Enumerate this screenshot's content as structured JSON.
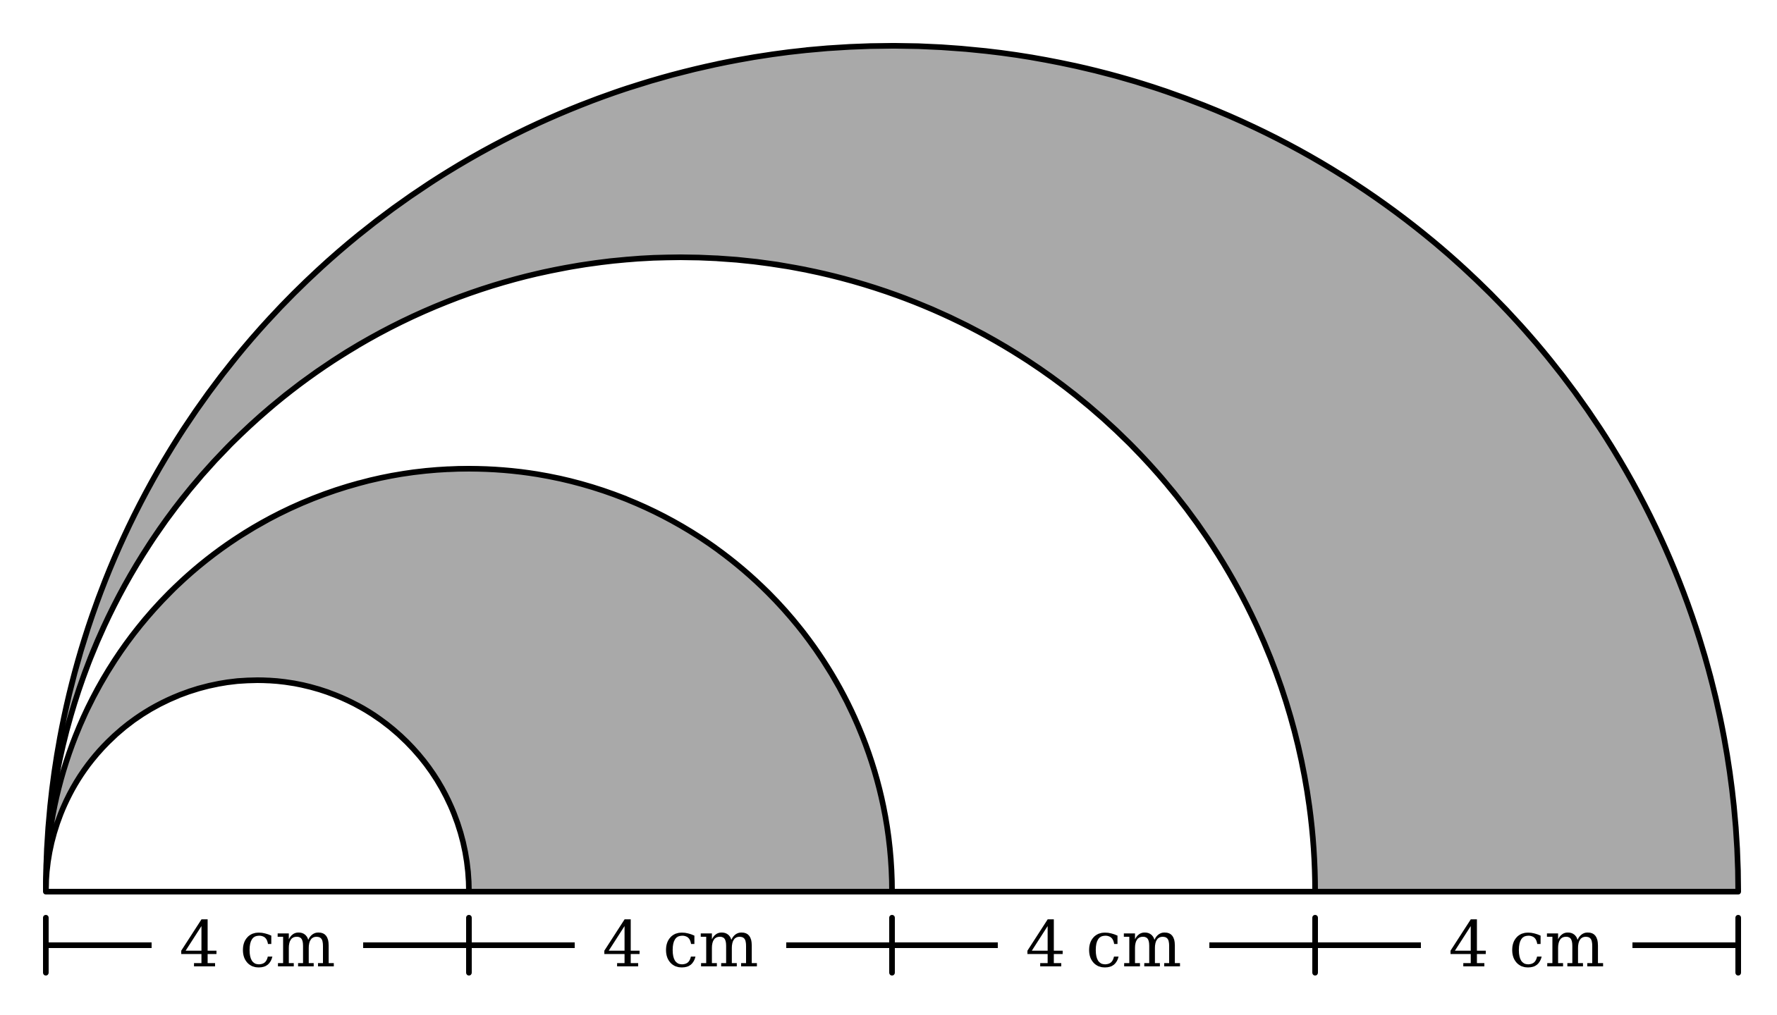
{
  "colors": {
    "shade": "#a9a9a9",
    "stroke": "#000000",
    "background": "#ffffff"
  },
  "figure": {
    "nested_semicircle_diameters_cm": [
      4,
      8,
      12,
      16
    ],
    "shaded_bands": [
      "between-4cm-and-8cm-semicircles",
      "between-12cm-and-16cm-semicircles"
    ]
  },
  "dimension_labels": [
    "4 cm",
    "4 cm",
    "4 cm",
    "4 cm"
  ]
}
